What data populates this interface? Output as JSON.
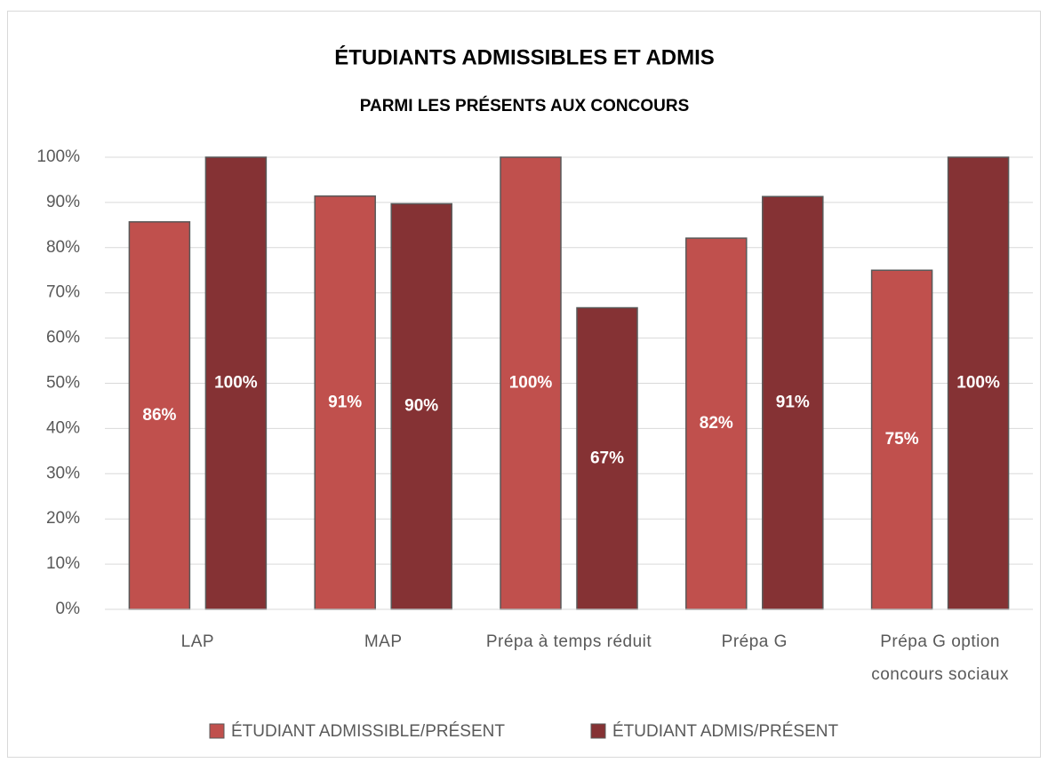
{
  "chart_data": {
    "type": "bar",
    "title": "ÉTUDIANTS ADMISSIBLES ET ADMIS",
    "subtitle": "PARMI LES PRÉSENTS AUX CONCOURS",
    "categories": [
      "LAP",
      "MAP",
      "Prépa à temps réduit",
      "Prépa G",
      "Prépa G option concours sociaux"
    ],
    "series": [
      {
        "name": "ÉTUDIANT ADMISSIBLE/PRÉSENT",
        "color": "#c0504d",
        "values": [
          85.7,
          91.4,
          100,
          82.1,
          75
        ],
        "value_labels": [
          "86%",
          "91%",
          "100%",
          "82%",
          "75%"
        ]
      },
      {
        "name": "ÉTUDIANT ADMIS/PRÉSENT",
        "color": "#853234",
        "values": [
          100,
          89.7,
          66.7,
          91.3,
          100
        ],
        "value_labels": [
          "100%",
          "90%",
          "67%",
          "91%",
          "100%"
        ]
      }
    ],
    "ylim": [
      0,
      100
    ],
    "yticks": [
      {
        "value": 0,
        "label": "0%"
      },
      {
        "value": 10,
        "label": "10%"
      },
      {
        "value": 20,
        "label": "20%"
      },
      {
        "value": 30,
        "label": "30%"
      },
      {
        "value": 40,
        "label": "40%"
      },
      {
        "value": 50,
        "label": "50%"
      },
      {
        "value": 60,
        "label": "60%"
      },
      {
        "value": 70,
        "label": "70%"
      },
      {
        "value": 80,
        "label": "80%"
      },
      {
        "value": 90,
        "label": "90%"
      },
      {
        "value": 100,
        "label": "100%"
      }
    ],
    "grid": true,
    "legend": "bottom"
  }
}
